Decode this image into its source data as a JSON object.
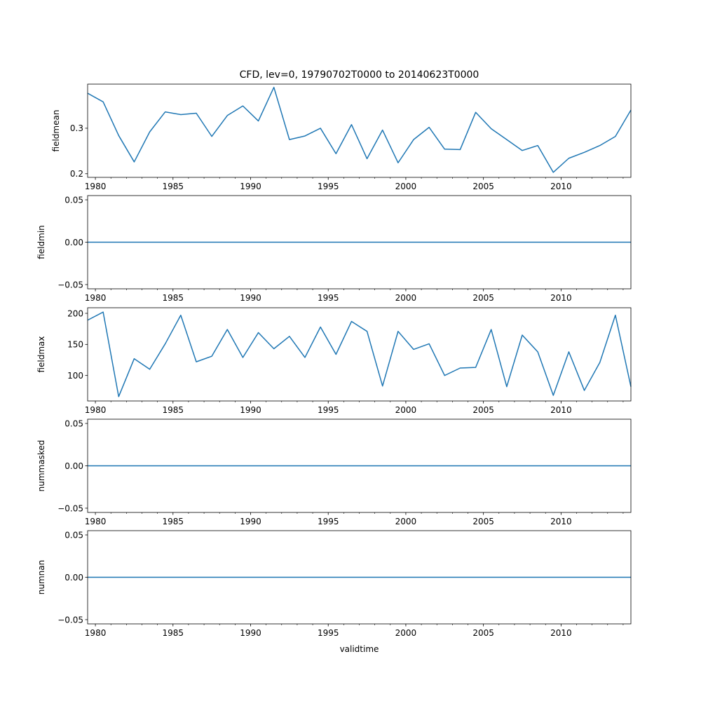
{
  "chart_data": {
    "title": "CFD, lev=0, 19790702T0000 to 20140623T0000",
    "xlabel": "validtime",
    "type": "line",
    "line_color": "#1f77b4",
    "xlim": [
      1979.5,
      2014.5
    ],
    "x_major_ticks": [
      1980,
      1985,
      1990,
      1995,
      2000,
      2005,
      2010
    ],
    "x_tick_labels": [
      "1980",
      "1985",
      "1990",
      "1995",
      "2000",
      "2005",
      "2010"
    ],
    "x": [
      1979.5,
      1980.5,
      1981.5,
      1982.5,
      1983.5,
      1984.5,
      1985.5,
      1986.5,
      1987.5,
      1988.5,
      1989.5,
      1990.5,
      1991.5,
      1992.5,
      1993.5,
      1994.5,
      1995.5,
      1996.5,
      1997.5,
      1998.5,
      1999.5,
      2000.5,
      2001.5,
      2002.5,
      2003.5,
      2004.5,
      2005.5,
      2006.5,
      2007.5,
      2008.5,
      2009.5,
      2010.5,
      2011.5,
      2012.5,
      2013.5,
      2014.5
    ],
    "panels": [
      {
        "ylabel": "fieldmean",
        "ylim": [
          0.192,
          0.397
        ],
        "yticks": [
          0.2,
          0.3
        ],
        "ytick_labels": [
          "0.2",
          "0.3"
        ],
        "values": [
          0.377,
          0.358,
          0.284,
          0.226,
          0.292,
          0.336,
          0.33,
          0.333,
          0.282,
          0.328,
          0.349,
          0.316,
          0.39,
          0.275,
          0.283,
          0.3,
          0.244,
          0.308,
          0.233,
          0.296,
          0.224,
          0.275,
          0.302,
          0.254,
          0.253,
          0.335,
          0.299,
          0.275,
          0.251,
          0.262,
          0.203,
          0.234,
          0.247,
          0.262,
          0.282,
          0.34
        ]
      },
      {
        "ylabel": "fieldmin",
        "ylim": [
          -0.055,
          0.055
        ],
        "yticks": [
          -0.05,
          0.0,
          0.05
        ],
        "ytick_labels": [
          "−0.05",
          "0.00",
          "0.05"
        ],
        "values": [
          0,
          0,
          0,
          0,
          0,
          0,
          0,
          0,
          0,
          0,
          0,
          0,
          0,
          0,
          0,
          0,
          0,
          0,
          0,
          0,
          0,
          0,
          0,
          0,
          0,
          0,
          0,
          0,
          0,
          0,
          0,
          0,
          0,
          0,
          0,
          0
        ]
      },
      {
        "ylabel": "fieldmax",
        "ylim": [
          59,
          209
        ],
        "yticks": [
          100,
          150,
          200
        ],
        "ytick_labels": [
          "100",
          "150",
          "200"
        ],
        "values": [
          189,
          202,
          66,
          127,
          110,
          151,
          197,
          122,
          131,
          174,
          129,
          169,
          143,
          163,
          129,
          178,
          134,
          187,
          171,
          83,
          171,
          142,
          151,
          100,
          112,
          113,
          174,
          82,
          165,
          138,
          68,
          138,
          76,
          121,
          197,
          82
        ]
      },
      {
        "ylabel": "nummasked",
        "ylim": [
          -0.055,
          0.055
        ],
        "yticks": [
          -0.05,
          0.0,
          0.05
        ],
        "ytick_labels": [
          "−0.05",
          "0.00",
          "0.05"
        ],
        "values": [
          0,
          0,
          0,
          0,
          0,
          0,
          0,
          0,
          0,
          0,
          0,
          0,
          0,
          0,
          0,
          0,
          0,
          0,
          0,
          0,
          0,
          0,
          0,
          0,
          0,
          0,
          0,
          0,
          0,
          0,
          0,
          0,
          0,
          0,
          0,
          0
        ]
      },
      {
        "ylabel": "numnan",
        "ylim": [
          -0.055,
          0.055
        ],
        "yticks": [
          -0.05,
          0.0,
          0.05
        ],
        "ytick_labels": [
          "−0.05",
          "0.00",
          "0.05"
        ],
        "values": [
          0,
          0,
          0,
          0,
          0,
          0,
          0,
          0,
          0,
          0,
          0,
          0,
          0,
          0,
          0,
          0,
          0,
          0,
          0,
          0,
          0,
          0,
          0,
          0,
          0,
          0,
          0,
          0,
          0,
          0,
          0,
          0,
          0,
          0,
          0,
          0
        ]
      }
    ]
  }
}
